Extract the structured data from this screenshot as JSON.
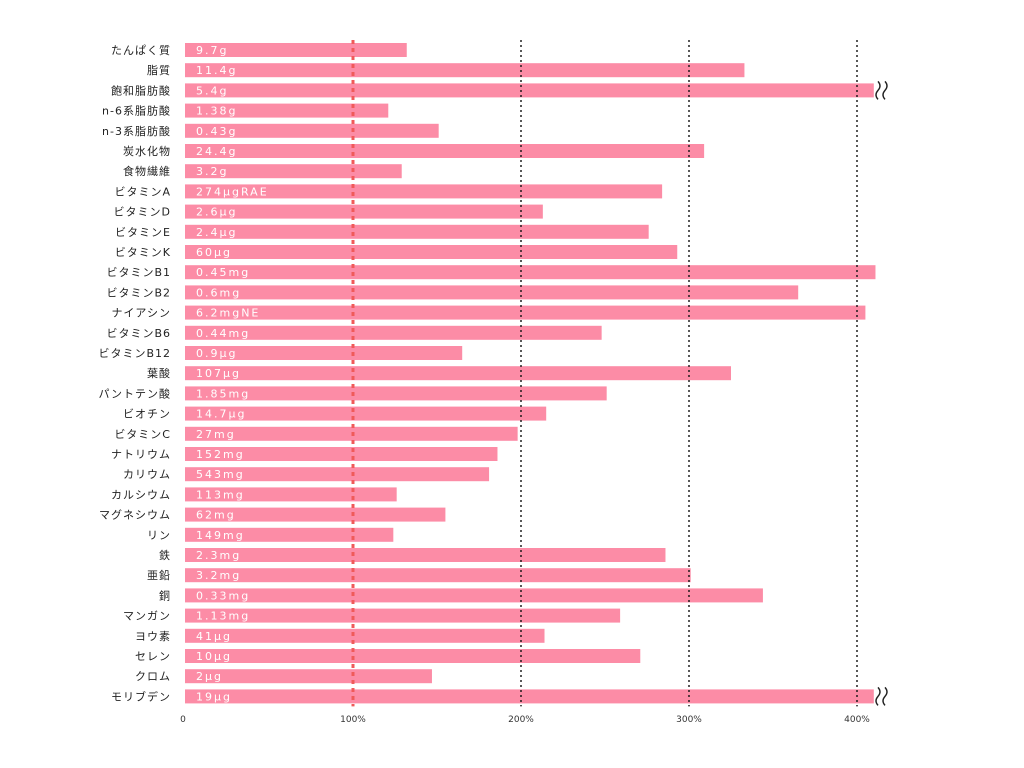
{
  "chart_data": {
    "type": "bar",
    "orientation": "horizontal",
    "unit": "%",
    "xlim": [
      0,
      410
    ],
    "x_ticks": [
      {
        "value": 0,
        "label": "0"
      },
      {
        "value": 100,
        "label": "100%"
      },
      {
        "value": 200,
        "label": "200%"
      },
      {
        "value": 300,
        "label": "300%"
      },
      {
        "value": 400,
        "label": "400%"
      }
    ],
    "reference_line": {
      "value": 100,
      "style": "dashed",
      "color": "#f05a5a"
    },
    "gridlines": [
      200,
      300,
      400
    ],
    "bar_color": "#fc8ca6",
    "categories": [
      {
        "name": "たんぱく質",
        "amount": "9.7g",
        "percent": 132
      },
      {
        "name": "脂質",
        "amount": "11.4g",
        "percent": 333
      },
      {
        "name": "飽和脂肪酸",
        "amount": "5.4g",
        "percent": 410,
        "truncated": true
      },
      {
        "name": "n-6系脂肪酸",
        "amount": "1.38g",
        "percent": 121
      },
      {
        "name": "n-3系脂肪酸",
        "amount": "0.43g",
        "percent": 151
      },
      {
        "name": "炭水化物",
        "amount": "24.4g",
        "percent": 309
      },
      {
        "name": "食物繊維",
        "amount": "3.2g",
        "percent": 129
      },
      {
        "name": "ビタミンA",
        "amount": "274µgRAE",
        "percent": 284
      },
      {
        "name": "ビタミンD",
        "amount": "2.6µg",
        "percent": 213
      },
      {
        "name": "ビタミンE",
        "amount": "2.4µg",
        "percent": 276
      },
      {
        "name": "ビタミンK",
        "amount": "60µg",
        "percent": 293
      },
      {
        "name": "ビタミンB1",
        "amount": "0.45mg",
        "percent": 411
      },
      {
        "name": "ビタミンB2",
        "amount": "0.6mg",
        "percent": 365
      },
      {
        "name": "ナイアシン",
        "amount": "6.2mgNE",
        "percent": 405
      },
      {
        "name": "ビタミンB6",
        "amount": "0.44mg",
        "percent": 248
      },
      {
        "name": "ビタミンB12",
        "amount": "0.9µg",
        "percent": 165
      },
      {
        "name": "葉酸",
        "amount": "107µg",
        "percent": 325
      },
      {
        "name": "パントテン酸",
        "amount": "1.85mg",
        "percent": 251
      },
      {
        "name": "ビオチン",
        "amount": "14.7µg",
        "percent": 215
      },
      {
        "name": "ビタミンC",
        "amount": "27mg",
        "percent": 198
      },
      {
        "name": "ナトリウム",
        "amount": "152mg",
        "percent": 186
      },
      {
        "name": "カリウム",
        "amount": "543mg",
        "percent": 181
      },
      {
        "name": "カルシウム",
        "amount": "113mg",
        "percent": 126
      },
      {
        "name": "マグネシウム",
        "amount": "62mg",
        "percent": 155
      },
      {
        "name": "リン",
        "amount": "149mg",
        "percent": 124
      },
      {
        "name": "鉄",
        "amount": "2.3mg",
        "percent": 286
      },
      {
        "name": "亜鉛",
        "amount": "3.2mg",
        "percent": 301
      },
      {
        "name": "銅",
        "amount": "0.33mg",
        "percent": 344
      },
      {
        "name": "マンガン",
        "amount": "1.13mg",
        "percent": 259
      },
      {
        "name": "ヨウ素",
        "amount": "41µg",
        "percent": 214
      },
      {
        "name": "セレン",
        "amount": "10µg",
        "percent": 271
      },
      {
        "name": "クロム",
        "amount": "2µg",
        "percent": 147
      },
      {
        "name": "モリブデン",
        "amount": "19µg",
        "percent": 410,
        "truncated": true
      }
    ]
  }
}
